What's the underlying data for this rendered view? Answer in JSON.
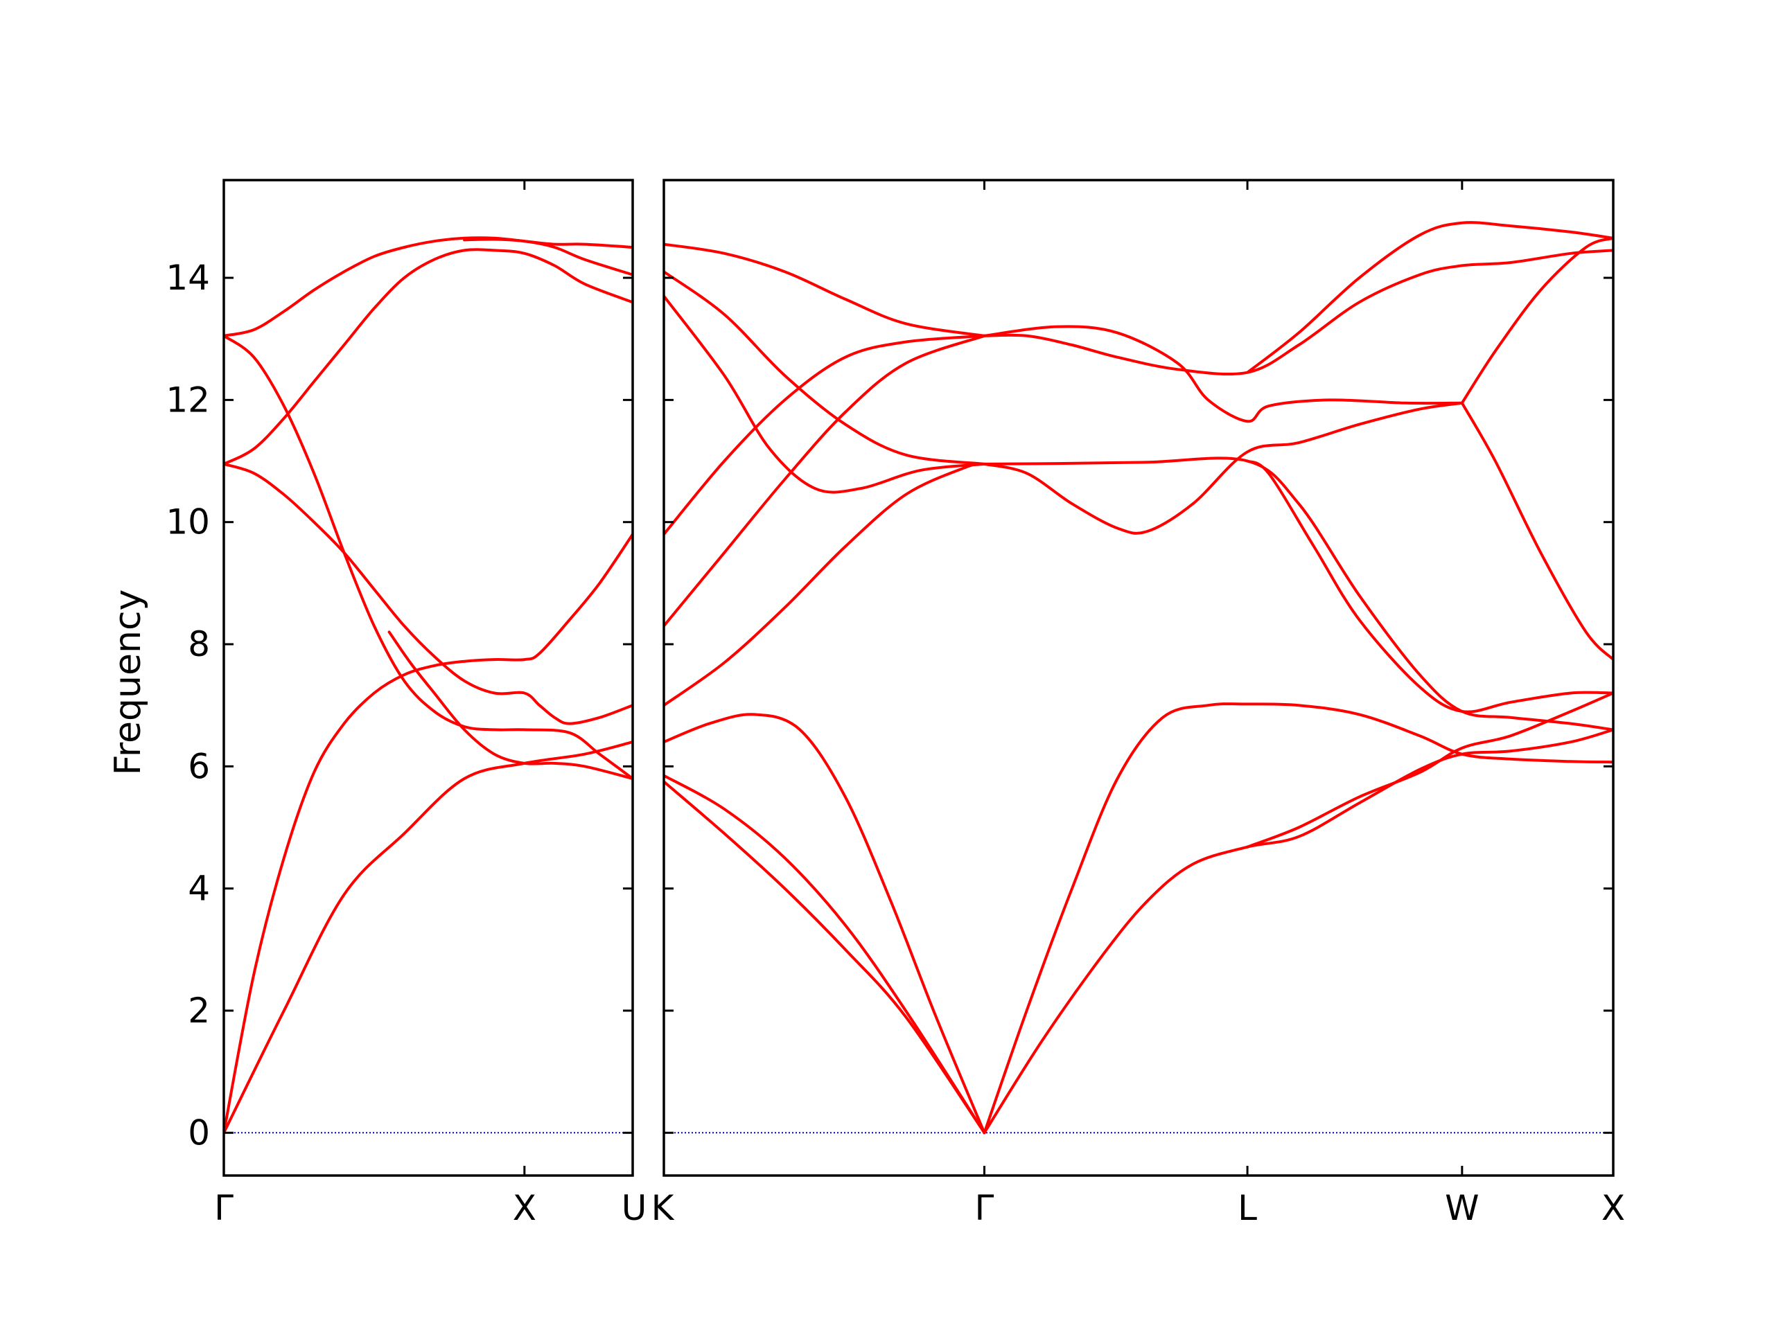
{
  "chart_data": {
    "type": "line",
    "title": "",
    "ylabel": "Frequency",
    "ylim": [
      -0.7,
      15.6
    ],
    "yticks": [
      0,
      2,
      4,
      6,
      8,
      10,
      12,
      14
    ],
    "grid": false,
    "line_color": "#ff0000",
    "zero_line_color": "#0000cc",
    "panels": [
      {
        "xticks": [
          {
            "pos": 0.0,
            "label": "Γ"
          },
          {
            "pos": 1.0,
            "label": "X"
          },
          {
            "pos": 1.36,
            "label": "U"
          }
        ],
        "branches": [
          [
            [
              0,
              0
            ],
            [
              0.2,
              2.0
            ],
            [
              0.4,
              3.9
            ],
            [
              0.6,
              4.9
            ],
            [
              0.8,
              5.8
            ],
            [
              1.0,
              6.05
            ],
            [
              1.2,
              6.2
            ],
            [
              1.36,
              6.4
            ]
          ],
          [
            [
              0,
              0
            ],
            [
              0.1,
              2.6
            ],
            [
              0.2,
              4.5
            ],
            [
              0.3,
              5.9
            ],
            [
              0.4,
              6.7
            ],
            [
              0.5,
              7.2
            ],
            [
              0.6,
              7.5
            ],
            [
              0.7,
              7.65
            ],
            [
              0.8,
              7.72
            ],
            [
              0.9,
              7.75
            ],
            [
              1.0,
              7.75
            ],
            [
              1.05,
              7.85
            ],
            [
              1.15,
              8.4
            ],
            [
              1.25,
              9.0
            ],
            [
              1.36,
              9.8
            ]
          ],
          [
            [
              0,
              10.95
            ],
            [
              0.1,
              10.8
            ],
            [
              0.2,
              10.45
            ],
            [
              0.3,
              10.0
            ],
            [
              0.4,
              9.5
            ],
            [
              0.5,
              8.9
            ],
            [
              0.6,
              8.3
            ],
            [
              0.7,
              7.8
            ],
            [
              0.8,
              7.4
            ],
            [
              0.9,
              7.2
            ],
            [
              1.0,
              7.2
            ],
            [
              1.05,
              7.0
            ],
            [
              1.1,
              6.8
            ],
            [
              1.15,
              6.7
            ],
            [
              1.25,
              6.8
            ],
            [
              1.36,
              7.0
            ]
          ],
          [
            [
              0,
              10.95
            ],
            [
              0.1,
              11.2
            ],
            [
              0.2,
              11.7
            ],
            [
              0.3,
              12.3
            ],
            [
              0.4,
              12.9
            ],
            [
              0.5,
              13.5
            ],
            [
              0.6,
              14.0
            ],
            [
              0.7,
              14.3
            ],
            [
              0.8,
              14.45
            ],
            [
              0.9,
              14.45
            ],
            [
              1.0,
              14.4
            ],
            [
              1.1,
              14.2
            ],
            [
              1.2,
              13.9
            ],
            [
              1.36,
              13.6
            ]
          ],
          [
            [
              0,
              13.05
            ],
            [
              0.1,
              12.7
            ],
            [
              0.2,
              11.9
            ],
            [
              0.3,
              10.8
            ],
            [
              0.4,
              9.5
            ],
            [
              0.5,
              8.3
            ],
            [
              0.6,
              7.4
            ],
            [
              0.7,
              6.9
            ],
            [
              0.8,
              6.65
            ],
            [
              0.9,
              6.6
            ],
            [
              1.0,
              6.6
            ],
            [
              1.15,
              6.55
            ],
            [
              1.25,
              6.2
            ],
            [
              1.36,
              5.8
            ]
          ],
          [
            [
              0,
              13.05
            ],
            [
              0.1,
              13.15
            ],
            [
              0.2,
              13.45
            ],
            [
              0.3,
              13.8
            ],
            [
              0.4,
              14.1
            ],
            [
              0.5,
              14.35
            ],
            [
              0.6,
              14.5
            ],
            [
              0.7,
              14.6
            ],
            [
              0.8,
              14.65
            ],
            [
              0.9,
              14.65
            ],
            [
              1.0,
              14.6
            ],
            [
              1.1,
              14.55
            ],
            [
              1.2,
              14.55
            ],
            [
              1.36,
              14.5
            ]
          ],
          [
            [
              0.55,
              8.2
            ],
            [
              0.62,
              7.7
            ],
            [
              0.7,
              7.2
            ],
            [
              0.8,
              6.6
            ],
            [
              0.9,
              6.2
            ],
            [
              1.0,
              6.05
            ],
            [
              1.1,
              6.05
            ],
            [
              1.2,
              6.0
            ],
            [
              1.36,
              5.8
            ]
          ],
          [
            [
              0.8,
              14.62
            ],
            [
              0.9,
              14.63
            ],
            [
              1.0,
              14.6
            ],
            [
              1.1,
              14.5
            ],
            [
              1.2,
              14.3
            ],
            [
              1.36,
              14.05
            ]
          ]
        ]
      },
      {
        "xticks": [
          {
            "pos": 0.0,
            "label": "K"
          },
          {
            "pos": 1.06,
            "label": "Γ"
          },
          {
            "pos": 1.93,
            "label": "L"
          },
          {
            "pos": 2.64,
            "label": "W"
          },
          {
            "pos": 3.14,
            "label": "X"
          }
        ],
        "branches": [
          [
            [
              0,
              5.75
            ],
            [
              0.2,
              4.9
            ],
            [
              0.4,
              4.0
            ],
            [
              0.6,
              3.0
            ],
            [
              0.8,
              1.9
            ],
            [
              1.06,
              0
            ]
          ],
          [
            [
              0,
              5.85
            ],
            [
              0.2,
              5.3
            ],
            [
              0.4,
              4.5
            ],
            [
              0.6,
              3.4
            ],
            [
              0.8,
              2.0
            ],
            [
              1.06,
              0
            ]
          ],
          [
            [
              0,
              6.4
            ],
            [
              0.15,
              6.7
            ],
            [
              0.3,
              6.85
            ],
            [
              0.45,
              6.6
            ],
            [
              0.6,
              5.5
            ],
            [
              0.75,
              3.8
            ],
            [
              0.9,
              1.9
            ],
            [
              1.06,
              0
            ]
          ],
          [
            [
              0,
              7.0
            ],
            [
              0.2,
              7.7
            ],
            [
              0.4,
              8.6
            ],
            [
              0.6,
              9.6
            ],
            [
              0.8,
              10.45
            ],
            [
              1.0,
              10.9
            ],
            [
              1.06,
              10.95
            ]
          ],
          [
            [
              0,
              8.3
            ],
            [
              0.2,
              9.5
            ],
            [
              0.4,
              10.7
            ],
            [
              0.6,
              11.8
            ],
            [
              0.8,
              12.6
            ],
            [
              1.06,
              13.05
            ]
          ],
          [
            [
              0,
              9.8
            ],
            [
              0.2,
              11.0
            ],
            [
              0.4,
              12.0
            ],
            [
              0.6,
              12.7
            ],
            [
              0.8,
              12.95
            ],
            [
              1.06,
              13.05
            ]
          ],
          [
            [
              0,
              13.7
            ],
            [
              0.2,
              12.4
            ],
            [
              0.35,
              11.2
            ],
            [
              0.5,
              10.55
            ],
            [
              0.65,
              10.55
            ],
            [
              0.85,
              10.85
            ],
            [
              1.06,
              10.95
            ]
          ],
          [
            [
              0,
              14.1
            ],
            [
              0.2,
              13.4
            ],
            [
              0.4,
              12.4
            ],
            [
              0.6,
              11.6
            ],
            [
              0.8,
              11.1
            ],
            [
              1.06,
              10.95
            ]
          ],
          [
            [
              0,
              14.55
            ],
            [
              0.2,
              14.4
            ],
            [
              0.4,
              14.1
            ],
            [
              0.6,
              13.65
            ],
            [
              0.8,
              13.25
            ],
            [
              1.06,
              13.05
            ]
          ],
          [
            [
              1.06,
              0
            ],
            [
              1.2,
              2.0
            ],
            [
              1.35,
              4.0
            ],
            [
              1.5,
              5.8
            ],
            [
              1.65,
              6.8
            ],
            [
              1.8,
              7.0
            ],
            [
              1.93,
              7.02
            ],
            [
              2.1,
              7.0
            ],
            [
              2.3,
              6.85
            ],
            [
              2.5,
              6.5
            ],
            [
              2.64,
              6.2
            ],
            [
              2.8,
              6.12
            ],
            [
              3.0,
              6.08
            ],
            [
              3.14,
              6.07
            ]
          ],
          [
            [
              1.06,
              0
            ],
            [
              1.25,
              1.5
            ],
            [
              1.45,
              2.9
            ],
            [
              1.6,
              3.8
            ],
            [
              1.75,
              4.4
            ],
            [
              1.93,
              4.68
            ],
            [
              2.1,
              4.85
            ],
            [
              2.3,
              5.4
            ],
            [
              2.5,
              5.95
            ],
            [
              2.64,
              6.2
            ],
            [
              2.8,
              6.25
            ],
            [
              3.0,
              6.4
            ],
            [
              3.14,
              6.6
            ]
          ],
          [
            [
              1.93,
              4.68
            ],
            [
              2.1,
              5.0
            ],
            [
              2.3,
              5.5
            ],
            [
              2.5,
              5.9
            ],
            [
              2.64,
              6.3
            ],
            [
              2.8,
              6.5
            ],
            [
              3.0,
              6.9
            ],
            [
              3.14,
              7.2
            ]
          ],
          [
            [
              1.06,
              10.95
            ],
            [
              1.2,
              10.8
            ],
            [
              1.35,
              10.3
            ],
            [
              1.5,
              9.9
            ],
            [
              1.6,
              9.85
            ],
            [
              1.75,
              10.3
            ],
            [
              1.93,
              11.15
            ],
            [
              2.1,
              11.3
            ],
            [
              2.3,
              11.6
            ],
            [
              2.5,
              11.85
            ],
            [
              2.64,
              11.95
            ]
          ],
          [
            [
              1.06,
              10.95
            ],
            [
              1.3,
              10.96
            ],
            [
              1.6,
              10.98
            ],
            [
              1.93,
              11.0
            ],
            [
              2.1,
              10.3
            ],
            [
              2.3,
              8.8
            ],
            [
              2.5,
              7.5
            ],
            [
              2.64,
              6.9
            ],
            [
              2.8,
              6.8
            ],
            [
              3.0,
              6.7
            ],
            [
              3.14,
              6.6
            ]
          ],
          [
            [
              1.93,
              11.0
            ],
            [
              2.0,
              10.8
            ],
            [
              2.15,
              9.6
            ],
            [
              2.3,
              8.4
            ],
            [
              2.5,
              7.3
            ],
            [
              2.64,
              6.9
            ],
            [
              2.8,
              7.05
            ],
            [
              3.0,
              7.2
            ],
            [
              3.14,
              7.2
            ]
          ],
          [
            [
              1.06,
              13.05
            ],
            [
              1.2,
              13.05
            ],
            [
              1.35,
              12.9
            ],
            [
              1.5,
              12.7
            ],
            [
              1.7,
              12.5
            ],
            [
              1.93,
              12.45
            ],
            [
              2.1,
              12.9
            ],
            [
              2.3,
              13.6
            ],
            [
              2.5,
              14.05
            ],
            [
              2.64,
              14.2
            ],
            [
              2.8,
              14.25
            ],
            [
              3.0,
              14.4
            ],
            [
              3.14,
              14.45
            ]
          ],
          [
            [
              1.06,
              13.05
            ],
            [
              1.3,
              13.2
            ],
            [
              1.5,
              13.1
            ],
            [
              1.7,
              12.6
            ],
            [
              1.8,
              12.0
            ],
            [
              1.93,
              11.65
            ],
            [
              2.0,
              11.9
            ],
            [
              2.2,
              12.0
            ],
            [
              2.45,
              11.95
            ],
            [
              2.64,
              11.95
            ]
          ],
          [
            [
              1.93,
              12.45
            ],
            [
              2.1,
              13.1
            ],
            [
              2.3,
              14.0
            ],
            [
              2.5,
              14.7
            ],
            [
              2.64,
              14.9
            ],
            [
              2.8,
              14.85
            ],
            [
              3.0,
              14.75
            ],
            [
              3.14,
              14.65
            ]
          ],
          [
            [
              2.64,
              11.95
            ],
            [
              2.75,
              11.0
            ],
            [
              2.9,
              9.5
            ],
            [
              3.05,
              8.2
            ],
            [
              3.14,
              7.75
            ]
          ],
          [
            [
              2.64,
              11.95
            ],
            [
              2.75,
              12.8
            ],
            [
              2.9,
              13.8
            ],
            [
              3.05,
              14.5
            ],
            [
              3.14,
              14.65
            ]
          ]
        ]
      }
    ]
  }
}
